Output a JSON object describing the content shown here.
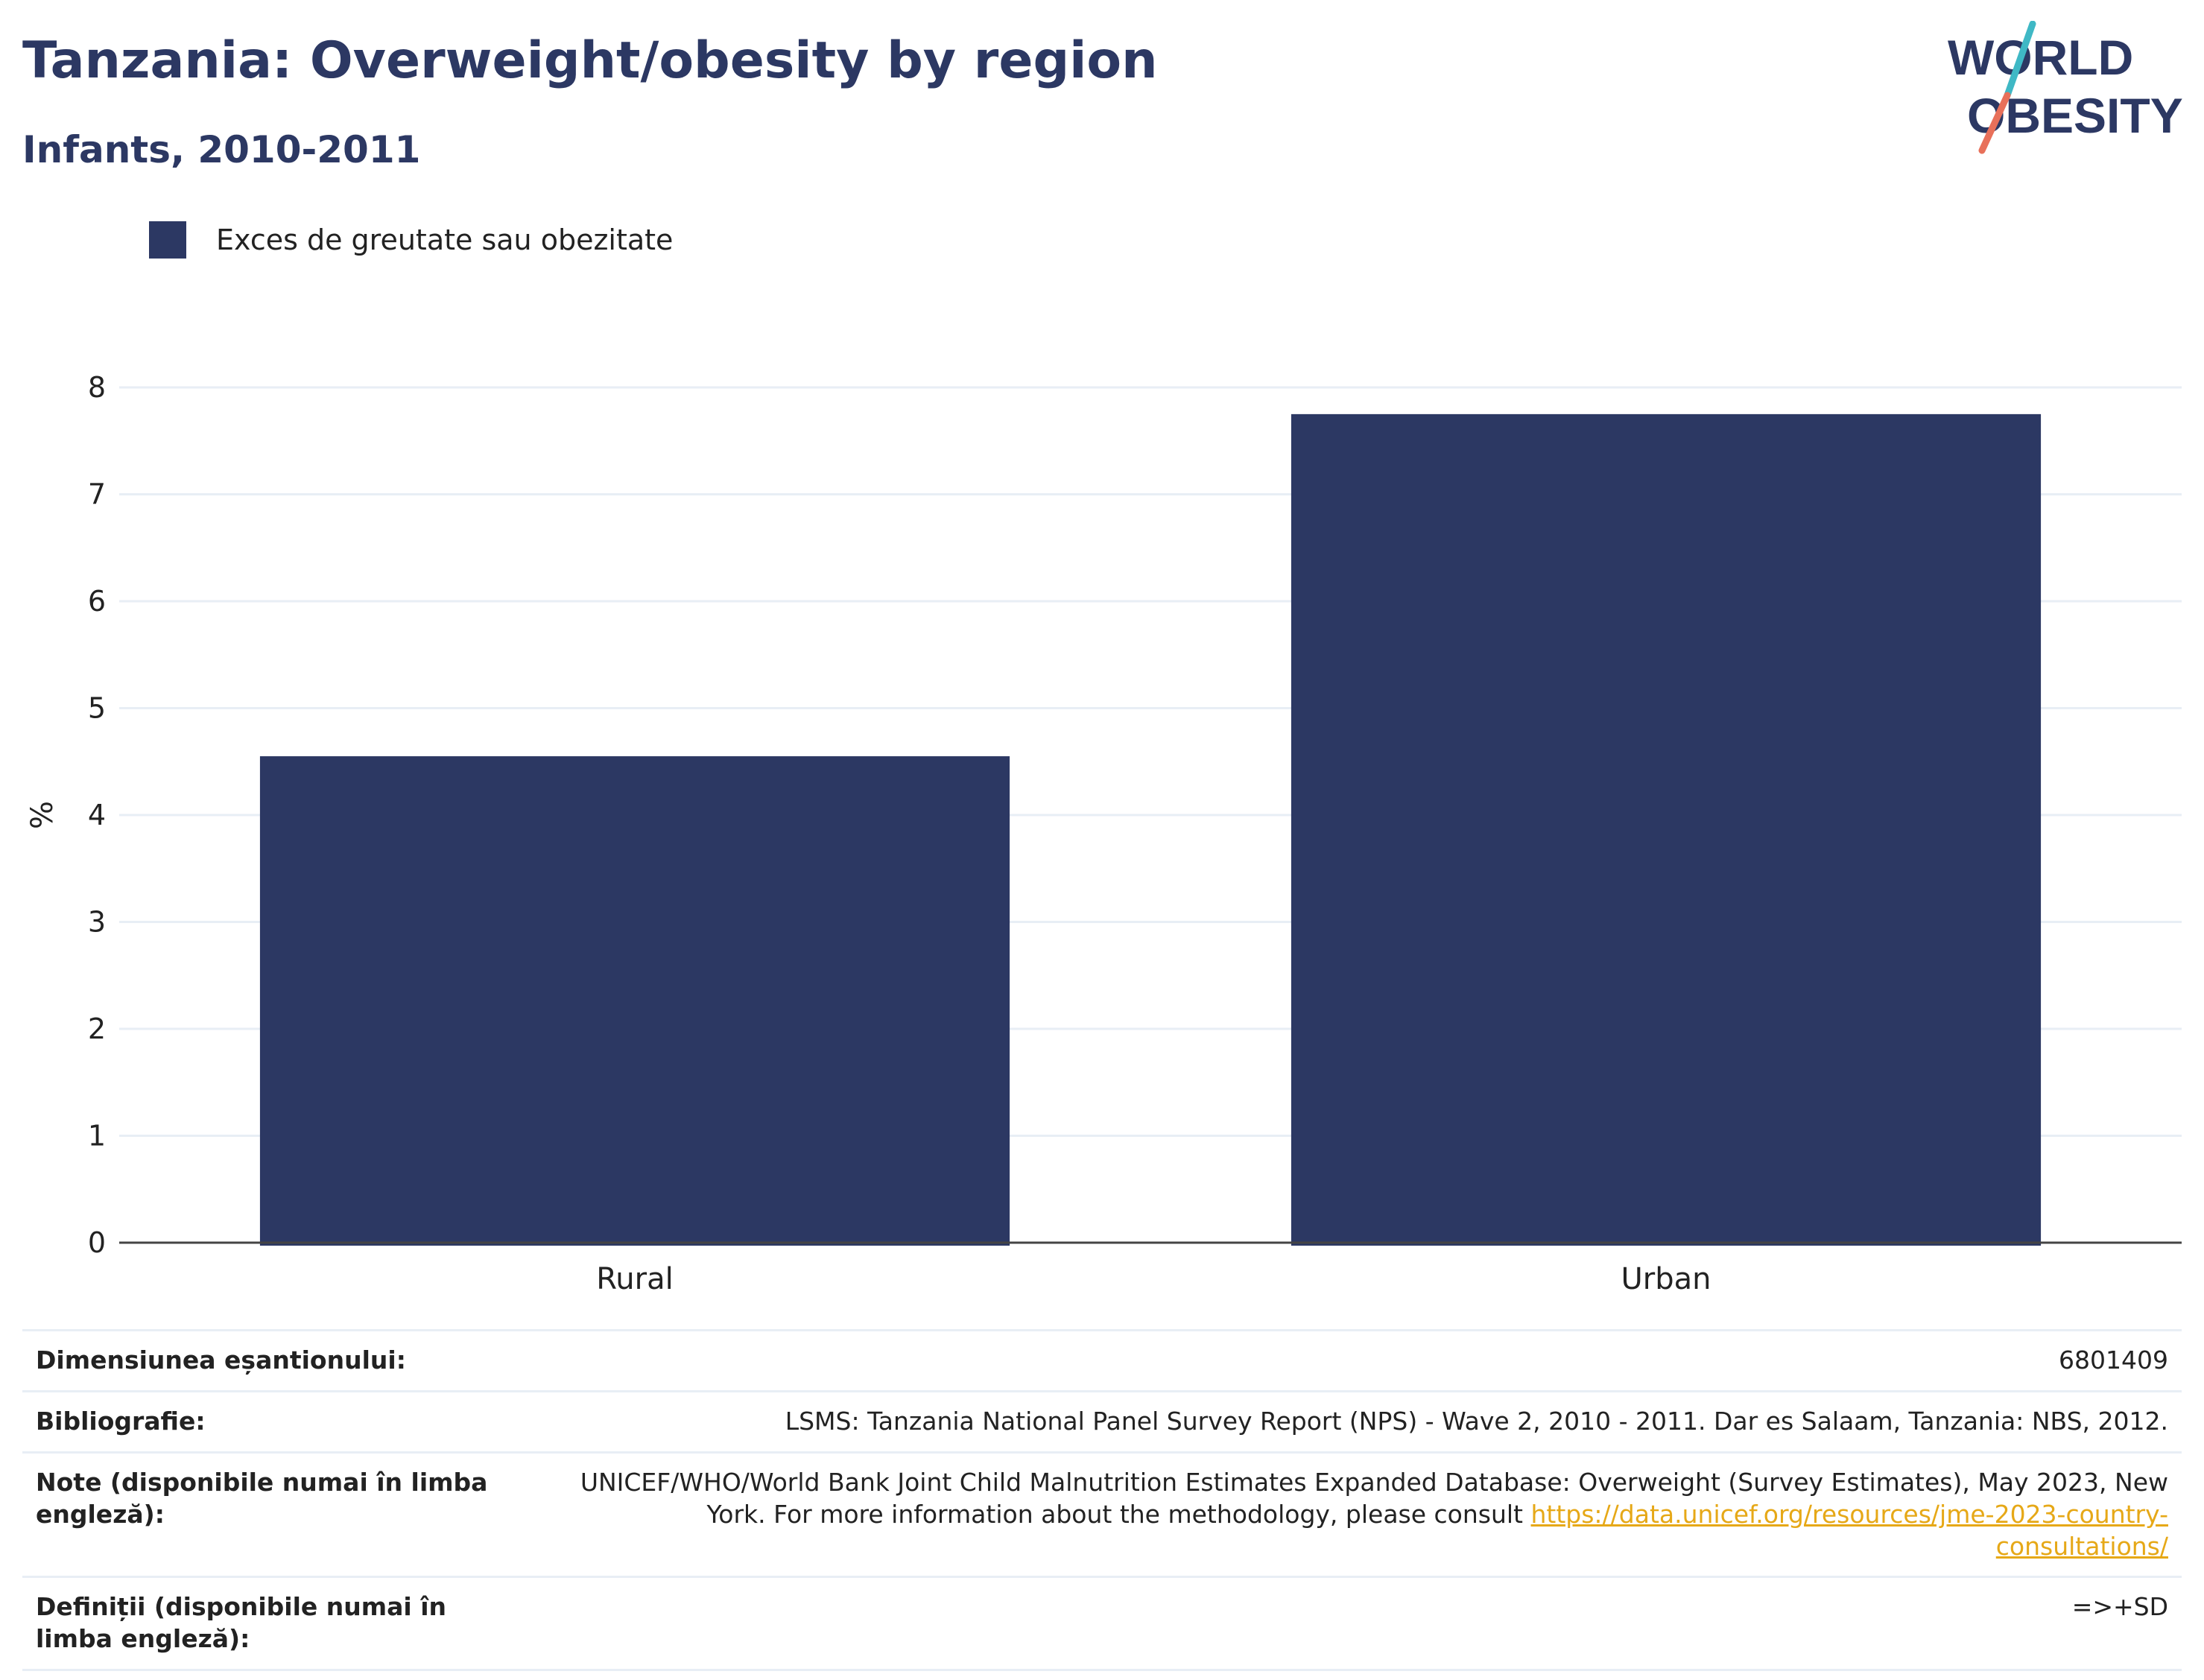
{
  "header": {
    "title": "Tanzania: Overweight/obesity by region",
    "subtitle": "Infants, 2010-2011"
  },
  "logo": {
    "line1": "WORLD",
    "line2": "OBESITY"
  },
  "chart_data": {
    "type": "bar",
    "categories": [
      "Rural",
      "Urban"
    ],
    "series": [
      {
        "name": "Exces de greutate sau obezitate",
        "values": [
          4.55,
          7.75
        ],
        "color": "#2c3863"
      }
    ],
    "ylabel": "%",
    "ylim": [
      0,
      8
    ],
    "yticks": [
      0,
      1,
      2,
      3,
      4,
      5,
      6,
      7,
      8
    ],
    "grid": true,
    "legend_position": "top-left"
  },
  "meta": {
    "sample_label": "Dimensiunea eșantionului:",
    "sample_value": "6801409",
    "biblio_label": "Bibliografie:",
    "biblio_value": "LSMS: Tanzania National Panel Survey Report (NPS) - Wave 2, 2010 - 2011. Dar es Salaam, Tanzania: NBS, 2012.",
    "notes_label": "Note (disponibile numai în limba engleză):",
    "notes_value": "UNICEF/WHO/World Bank Joint Child Malnutrition Estimates Expanded Database: Overweight (Survey Estimates), May 2023, New York. For more information about the methodology, please consult",
    "notes_link": "https://data.unicef.org/resources/jme-2023-country-consultations/",
    "defs_label": "Definiții (disponibile numai în limba engleză):",
    "defs_value": "=>+SD"
  }
}
